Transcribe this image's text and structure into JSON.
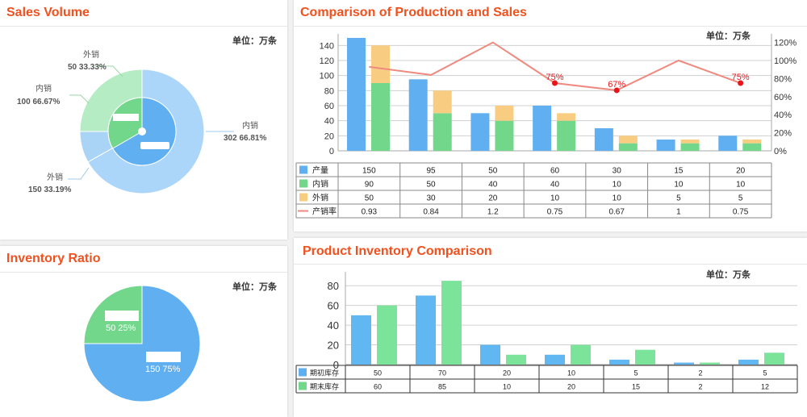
{
  "colors": {
    "title": "#f0511f",
    "blue": "#60aff0",
    "green": "#72d68b",
    "orange": "#f9cd81",
    "line": "#ef8a80",
    "red": "#e8151b"
  },
  "panels": {
    "sales": {
      "title": "Sales Volume",
      "unit": "单位：万条"
    },
    "inventory_ratio": {
      "title": "Inventory Ratio",
      "unit": "单位：万条"
    },
    "production": {
      "title": "Comparison of Production and Sales",
      "unit": "单位：万条"
    },
    "inventory": {
      "title": "Product Inventory Comparison",
      "unit": "单位：万条"
    }
  },
  "chart_data": [
    {
      "id": "sales_volume",
      "type": "pie",
      "title": "Sales Volume",
      "inner": [
        {
          "name": "内销",
          "value": 100,
          "pct": "66.67%"
        },
        {
          "name": "外销",
          "value": 50,
          "pct": "33.33%"
        }
      ],
      "outer": [
        {
          "name": "内销",
          "value": 302,
          "pct": "66.81%"
        },
        {
          "name": "外销",
          "value": 150,
          "pct": "33.19%"
        }
      ]
    },
    {
      "id": "inventory_ratio",
      "type": "pie",
      "title": "Inventory Ratio",
      "slices": [
        {
          "value": 150,
          "pct": "75%"
        },
        {
          "value": 50,
          "pct": "25%"
        }
      ]
    },
    {
      "id": "production_sales",
      "type": "bar",
      "title": "Comparison of Production and Sales",
      "ylim": [
        0,
        150
      ],
      "yticks": [
        0,
        20,
        40,
        60,
        80,
        100,
        120,
        140
      ],
      "y2lim": [
        0,
        1.25
      ],
      "y2ticks": [
        "0%",
        "20%",
        "40%",
        "60%",
        "80%",
        "100%",
        "120%"
      ],
      "series": [
        {
          "name": "产量",
          "values": [
            150,
            95,
            50,
            60,
            30,
            15,
            20
          ]
        },
        {
          "name": "内销",
          "values": [
            90,
            50,
            40,
            40,
            10,
            10,
            10
          ]
        },
        {
          "name": "外销",
          "values": [
            50,
            30,
            20,
            10,
            10,
            5,
            5
          ]
        },
        {
          "name": "产销率",
          "values": [
            0.93,
            0.84,
            1.2,
            0.75,
            0.67,
            1,
            0.75
          ]
        }
      ],
      "annotations": [
        {
          "index": 3,
          "label": "75%"
        },
        {
          "index": 4,
          "label": "67%"
        },
        {
          "index": 6,
          "label": "75%"
        }
      ]
    },
    {
      "id": "inventory_comparison",
      "type": "bar",
      "title": "Product Inventory Comparison",
      "ylim": [
        0,
        90
      ],
      "yticks": [
        0,
        20,
        40,
        60,
        80
      ],
      "series": [
        {
          "name": "期初库存",
          "values": [
            50,
            70,
            20,
            10,
            5,
            2,
            5
          ]
        },
        {
          "name": "期末库存",
          "values": [
            60,
            85,
            10,
            20,
            15,
            2,
            12
          ]
        }
      ]
    }
  ]
}
